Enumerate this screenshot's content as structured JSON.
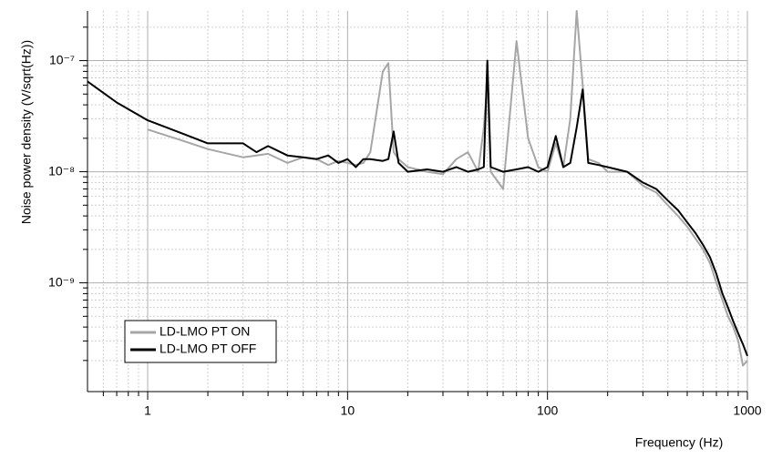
{
  "chart_data": {
    "type": "line",
    "xlabel": "Frequency (Hz)",
    "ylabel": "Noise power density (V/sqrt(Hz))",
    "xscale": "log",
    "yscale": "log",
    "grid": true,
    "legend": "lower left",
    "xlim": [
      0.5,
      1000
    ],
    "ylim": [
      1.05e-10,
      2.8e-07
    ],
    "xticks": [
      1,
      10,
      100,
      1000
    ],
    "yticks": [
      {
        "value": 1e-09,
        "label": "10⁻⁹"
      },
      {
        "value": 1e-08,
        "label": "10⁻⁸"
      },
      {
        "value": 1e-07,
        "label": "10⁻⁷"
      }
    ],
    "xminorticks": [
      0.6,
      0.7,
      0.8,
      0.9,
      2,
      3,
      4,
      5,
      6,
      7,
      8,
      9,
      20,
      30,
      40,
      50,
      60,
      70,
      80,
      90,
      200,
      300,
      400,
      500,
      600,
      700,
      800,
      900
    ],
    "yminorticks": [
      2e-10,
      3e-10,
      4e-10,
      5e-10,
      6e-10,
      7e-10,
      8e-10,
      9e-10,
      2e-09,
      3e-09,
      4e-09,
      5e-09,
      6e-09,
      7e-09,
      8e-09,
      9e-09,
      2e-08,
      3e-08,
      4e-08,
      5e-08,
      6e-08,
      7e-08,
      8e-08,
      9e-08,
      2e-07
    ],
    "x": [
      0.5,
      0.7,
      1,
      1.5,
      2,
      3,
      3.5,
      4,
      5,
      6,
      7,
      8,
      9,
      10,
      11,
      12,
      13,
      15,
      16,
      17,
      18,
      20,
      25,
      30,
      35,
      40,
      45,
      48,
      50,
      52,
      60,
      70,
      80,
      90,
      100,
      110,
      120,
      130,
      140,
      150,
      160,
      180,
      200,
      250,
      300,
      350,
      400,
      450,
      500,
      550,
      600,
      650,
      700,
      750,
      800,
      850,
      900,
      950,
      1000
    ],
    "series": [
      {
        "name": "LD-LMO PT ON",
        "color": "#a6a6a6",
        "values": [
          null,
          null,
          2.4e-08,
          1.9e-08,
          1.6e-08,
          1.35e-08,
          1.4e-08,
          1.45e-08,
          1.2e-08,
          1.35e-08,
          1.3e-08,
          1.15e-08,
          1.25e-08,
          1.2e-08,
          1.15e-08,
          1.2e-08,
          1.5e-08,
          8e-08,
          9.5e-08,
          1.5e-08,
          1.3e-08,
          1.1e-08,
          1e-08,
          9.5e-09,
          1.3e-08,
          1.5e-08,
          1e-08,
          2.5e-08,
          6.5e-08,
          1e-08,
          7e-09,
          1.5e-07,
          2e-08,
          1.1e-08,
          1e-08,
          1.8e-08,
          1.1e-08,
          3e-08,
          2.8e-07,
          6e-08,
          1.3e-08,
          1.2e-08,
          1e-08,
          1e-08,
          7.5e-09,
          6.5e-09,
          5e-09,
          4e-09,
          3.2e-09,
          2.5e-09,
          2e-09,
          1.5e-09,
          1e-09,
          7e-10,
          5e-10,
          4e-10,
          3e-10,
          1.8e-10,
          2e-10
        ]
      },
      {
        "name": "LD-LMO PT OFF",
        "color": "#000000",
        "values": [
          6.5e-08,
          4.2e-08,
          2.9e-08,
          2.2e-08,
          1.8e-08,
          1.8e-08,
          1.5e-08,
          1.7e-08,
          1.4e-08,
          1.35e-08,
          1.3e-08,
          1.4e-08,
          1.2e-08,
          1.3e-08,
          1.1e-08,
          1.3e-08,
          1.3e-08,
          1.25e-08,
          1.3e-08,
          2.3e-08,
          1.2e-08,
          1e-08,
          1.05e-08,
          1e-08,
          1.1e-08,
          1e-08,
          1.05e-08,
          1.1e-08,
          1e-07,
          1.1e-08,
          1e-08,
          1.05e-08,
          1.1e-08,
          1e-08,
          1.1e-08,
          2.1e-08,
          1.1e-08,
          1.2e-08,
          2.5e-08,
          5.5e-08,
          1.2e-08,
          1.15e-08,
          1.1e-08,
          1e-08,
          8e-09,
          7e-09,
          5.5e-09,
          4.5e-09,
          3.5e-09,
          2.8e-09,
          2.2e-09,
          1.7e-09,
          1.2e-09,
          8e-10,
          6e-10,
          4.5e-10,
          3.5e-10,
          2.8e-10,
          2.2e-10
        ]
      }
    ]
  }
}
